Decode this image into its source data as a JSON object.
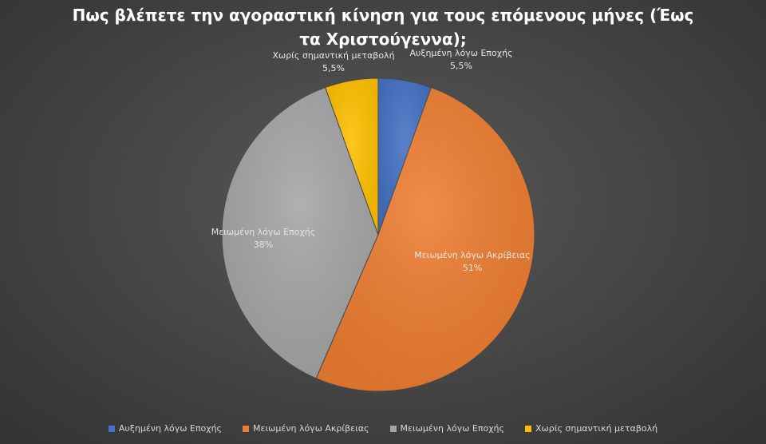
{
  "chart_data": {
    "type": "pie",
    "title": "Πως βλέπετε την αγοραστική κίνηση για τους επόμενους μήνες (Έως τα Χριστούγεννα);",
    "slices": [
      {
        "name": "Αυξημένη λόγω Εποχής",
        "value": 5.5,
        "label": "5,5%",
        "color": "#4472c4"
      },
      {
        "name": "Μειωμένη λόγω Ακρίβειας",
        "value": 51,
        "label": "51%",
        "color": "#ed7d31"
      },
      {
        "name": "Μειωμένη λόγω Εποχής",
        "value": 38,
        "label": "38%",
        "color": "#a5a5a5"
      },
      {
        "name": "Χωρίς σημαντική μεταβολή",
        "value": 5.5,
        "label": "5,5%",
        "color": "#ffc000"
      }
    ],
    "legend_position": "bottom"
  }
}
